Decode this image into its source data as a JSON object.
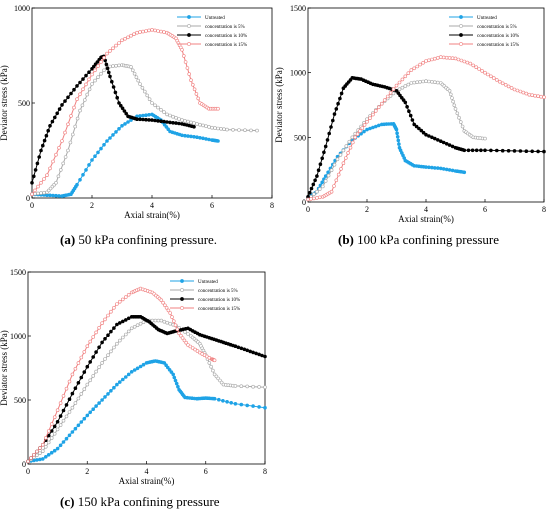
{
  "captions": {
    "a_letter": "(a)",
    "a_text": " 50 kPa confining pressure.",
    "b_letter": "(b)",
    "b_text": " 100 kPa confining pressure",
    "c_letter": "(c)",
    "c_text": " 150 kPa confining pressure"
  },
  "colors": {
    "untreated": "#1fa3e6",
    "c5": "#a8a8a8",
    "c10": "#000000",
    "c15": "#f08080"
  },
  "chart_data": [
    {
      "id": "a",
      "type": "line",
      "xlabel": "Axial strain(%)",
      "ylabel": "Deviator stress (kPa)",
      "xlim": [
        0,
        8
      ],
      "ylim": [
        0,
        1000
      ],
      "xticks": [
        0,
        2,
        4,
        6,
        8
      ],
      "yticks": [
        0,
        500,
        1000
      ],
      "legend_position": "top-right",
      "series": [
        {
          "name": "Untreated",
          "key": "untreated",
          "marker": "filled-circle",
          "points": [
            [
              0,
              20
            ],
            [
              0.5,
              15
            ],
            [
              1,
              10
            ],
            [
              1.3,
              20
            ],
            [
              1.5,
              70
            ],
            [
              2,
              200
            ],
            [
              2.5,
              300
            ],
            [
              3,
              380
            ],
            [
              3.5,
              430
            ],
            [
              4,
              440
            ],
            [
              4.3,
              410
            ],
            [
              4.6,
              350
            ],
            [
              5,
              330
            ],
            [
              5.5,
              320
            ],
            [
              6,
              305
            ],
            [
              6.2,
              300
            ]
          ]
        },
        {
          "name": "concentration is 5%",
          "key": "c5",
          "marker": "open-circle",
          "points": [
            [
              0,
              20
            ],
            [
              0.5,
              30
            ],
            [
              0.8,
              80
            ],
            [
              1.2,
              250
            ],
            [
              1.6,
              460
            ],
            [
              2,
              600
            ],
            [
              2.5,
              690
            ],
            [
              3,
              700
            ],
            [
              3.3,
              690
            ],
            [
              3.6,
              600
            ],
            [
              4,
              500
            ],
            [
              4.5,
              440
            ],
            [
              5,
              410
            ],
            [
              5.5,
              390
            ],
            [
              6,
              370
            ],
            [
              6.5,
              360
            ],
            [
              7.5,
              355
            ]
          ]
        },
        {
          "name": "concentration is 10%",
          "key": "c10",
          "marker": "filled-circle",
          "points": [
            [
              0,
              80
            ],
            [
              0.3,
              250
            ],
            [
              0.6,
              380
            ],
            [
              1,
              490
            ],
            [
              1.5,
              590
            ],
            [
              2,
              680
            ],
            [
              2.3,
              740
            ],
            [
              2.4,
              745
            ],
            [
              2.6,
              640
            ],
            [
              2.9,
              500
            ],
            [
              3.2,
              430
            ],
            [
              3.5,
              415
            ],
            [
              4,
              410
            ],
            [
              4.5,
              400
            ],
            [
              5,
              390
            ],
            [
              5.4,
              375
            ]
          ]
        },
        {
          "name": "concentration is 15%",
          "key": "c15",
          "marker": "open-circle",
          "points": [
            [
              0,
              20
            ],
            [
              0.5,
              120
            ],
            [
              1,
              300
            ],
            [
              1.5,
              520
            ],
            [
              2,
              650
            ],
            [
              2.5,
              760
            ],
            [
              3,
              830
            ],
            [
              3.5,
              870
            ],
            [
              4,
              885
            ],
            [
              4.5,
              870
            ],
            [
              4.8,
              840
            ],
            [
              5,
              780
            ],
            [
              5.3,
              620
            ],
            [
              5.6,
              500
            ],
            [
              5.9,
              470
            ],
            [
              6.2,
              470
            ]
          ]
        }
      ]
    },
    {
      "id": "b",
      "type": "line",
      "xlabel": "Axial strain(%)",
      "ylabel": "Deviator stress (kPa)",
      "xlim": [
        0,
        8
      ],
      "ylim": [
        0,
        1500
      ],
      "xticks": [
        0,
        2,
        4,
        6,
        8
      ],
      "yticks": [
        0,
        500,
        1000,
        1500
      ],
      "legend_position": "top-right",
      "series": [
        {
          "name": "Untreated",
          "key": "untreated",
          "marker": "filled-circle",
          "points": [
            [
              0,
              30
            ],
            [
              0.3,
              80
            ],
            [
              0.6,
              200
            ],
            [
              1,
              350
            ],
            [
              1.5,
              480
            ],
            [
              2,
              560
            ],
            [
              2.5,
              600
            ],
            [
              2.9,
              605
            ],
            [
              3,
              560
            ],
            [
              3.1,
              420
            ],
            [
              3.3,
              320
            ],
            [
              3.6,
              280
            ],
            [
              4,
              270
            ],
            [
              4.5,
              260
            ],
            [
              5,
              240
            ],
            [
              5.3,
              230
            ]
          ]
        },
        {
          "name": "concentration is 5%",
          "key": "c5",
          "marker": "open-circle",
          "points": [
            [
              0,
              20
            ],
            [
              0.5,
              120
            ],
            [
              1,
              330
            ],
            [
              1.5,
              500
            ],
            [
              2,
              640
            ],
            [
              2.5,
              760
            ],
            [
              3,
              860
            ],
            [
              3.5,
              920
            ],
            [
              4,
              935
            ],
            [
              4.5,
              920
            ],
            [
              4.8,
              860
            ],
            [
              5,
              720
            ],
            [
              5.3,
              550
            ],
            [
              5.6,
              500
            ],
            [
              6,
              490
            ]
          ]
        },
        {
          "name": "concentration is 10%",
          "key": "c10",
          "marker": "filled-circle",
          "points": [
            [
              0,
              40
            ],
            [
              0.3,
              200
            ],
            [
              0.6,
              430
            ],
            [
              0.9,
              680
            ],
            [
              1.2,
              880
            ],
            [
              1.5,
              960
            ],
            [
              1.8,
              950
            ],
            [
              2.2,
              910
            ],
            [
              2.6,
              890
            ],
            [
              3,
              860
            ],
            [
              3.3,
              770
            ],
            [
              3.6,
              600
            ],
            [
              4,
              520
            ],
            [
              4.5,
              470
            ],
            [
              5,
              420
            ],
            [
              5.3,
              400
            ],
            [
              6,
              400
            ],
            [
              7,
              395
            ],
            [
              8,
              390
            ]
          ]
        },
        {
          "name": "concentration is 15%",
          "key": "c15",
          "marker": "open-circle",
          "points": [
            [
              0,
              20
            ],
            [
              0.5,
              40
            ],
            [
              0.8,
              80
            ],
            [
              1.2,
              300
            ],
            [
              1.6,
              500
            ],
            [
              2,
              620
            ],
            [
              2.5,
              760
            ],
            [
              3,
              900
            ],
            [
              3.5,
              1020
            ],
            [
              4,
              1090
            ],
            [
              4.5,
              1120
            ],
            [
              5,
              1110
            ],
            [
              5.5,
              1070
            ],
            [
              6,
              1000
            ],
            [
              6.5,
              930
            ],
            [
              7,
              870
            ],
            [
              7.5,
              830
            ],
            [
              8,
              810
            ]
          ]
        }
      ]
    },
    {
      "id": "c",
      "type": "line",
      "xlabel": "Axial strain(%)",
      "ylabel": "Deviator stress (kPa)",
      "xlim": [
        0,
        8
      ],
      "ylim": [
        0,
        1500
      ],
      "xticks": [
        0,
        2,
        4,
        6,
        8
      ],
      "yticks": [
        0,
        500,
        1000,
        1500
      ],
      "legend_position": "top-right",
      "series": [
        {
          "name": "Untreated",
          "key": "untreated",
          "marker": "filled-circle",
          "points": [
            [
              0,
              20
            ],
            [
              0.5,
              40
            ],
            [
              1,
              120
            ],
            [
              1.5,
              250
            ],
            [
              2,
              380
            ],
            [
              2.5,
              500
            ],
            [
              3,
              620
            ],
            [
              3.5,
              720
            ],
            [
              4,
              790
            ],
            [
              4.3,
              805
            ],
            [
              4.6,
              790
            ],
            [
              4.9,
              700
            ],
            [
              5.1,
              580
            ],
            [
              5.3,
              520
            ],
            [
              5.7,
              510
            ],
            [
              6,
              515
            ],
            [
              6.3,
              510
            ],
            [
              7,
              470
            ],
            [
              8,
              440
            ]
          ]
        },
        {
          "name": "concentration is 5%",
          "key": "c5",
          "marker": "open-circle",
          "points": [
            [
              0,
              20
            ],
            [
              0.5,
              100
            ],
            [
              1,
              270
            ],
            [
              1.5,
              440
            ],
            [
              2,
              620
            ],
            [
              2.5,
              790
            ],
            [
              3,
              940
            ],
            [
              3.5,
              1060
            ],
            [
              4,
              1120
            ],
            [
              4.5,
              1120
            ],
            [
              5,
              1080
            ],
            [
              5.5,
              1000
            ],
            [
              5.8,
              940
            ],
            [
              6,
              850
            ],
            [
              6.3,
              700
            ],
            [
              6.6,
              620
            ],
            [
              7,
              610
            ],
            [
              8,
              600
            ]
          ]
        },
        {
          "name": "concentration is 10%",
          "key": "c10",
          "marker": "filled-circle",
          "points": [
            [
              0,
              20
            ],
            [
              0.5,
              150
            ],
            [
              1,
              330
            ],
            [
              1.5,
              550
            ],
            [
              2,
              760
            ],
            [
              2.5,
              950
            ],
            [
              3,
              1090
            ],
            [
              3.5,
              1150
            ],
            [
              3.8,
              1150
            ],
            [
              4.1,
              1110
            ],
            [
              4.4,
              1050
            ],
            [
              4.7,
              1020
            ],
            [
              5,
              1040
            ],
            [
              5.4,
              1060
            ],
            [
              5.8,
              1010
            ],
            [
              6.2,
              980
            ],
            [
              6.6,
              950
            ],
            [
              7,
              920
            ],
            [
              7.5,
              880
            ],
            [
              8,
              840
            ]
          ]
        },
        {
          "name": "concentration is 15%",
          "key": "c15",
          "marker": "open-circle",
          "points": [
            [
              0,
              20
            ],
            [
              0.5,
              150
            ],
            [
              1,
              420
            ],
            [
              1.5,
              700
            ],
            [
              2,
              920
            ],
            [
              2.5,
              1100
            ],
            [
              3,
              1250
            ],
            [
              3.5,
              1340
            ],
            [
              3.8,
              1370
            ],
            [
              4.2,
              1340
            ],
            [
              4.5,
              1280
            ],
            [
              4.8,
              1180
            ],
            [
              5.1,
              1020
            ],
            [
              5.4,
              930
            ],
            [
              5.8,
              870
            ],
            [
              6.2,
              820
            ],
            [
              6.3,
              810
            ]
          ]
        }
      ]
    }
  ]
}
